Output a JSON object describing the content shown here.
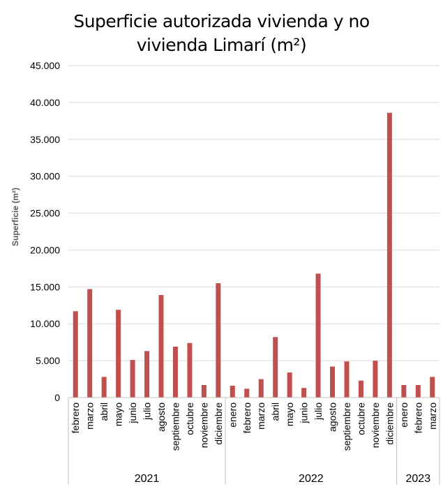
{
  "chart_data": {
    "type": "bar",
    "title_line1": "Superficie autorizada vivienda y no",
    "title_line2": "vivienda Limarí (m²)",
    "ylabel": "Superficie  (m²)",
    "xlabel": "",
    "ylim": [
      0,
      45000
    ],
    "yticks": [
      0,
      5000,
      10000,
      15000,
      20000,
      25000,
      30000,
      35000,
      40000,
      45000
    ],
    "ytick_labels": [
      "0",
      "5.000",
      "10.000",
      "15.000",
      "20.000",
      "25.000",
      "30.000",
      "35.000",
      "40.000",
      "45.000"
    ],
    "grid": true,
    "legend": "none",
    "bar_color": "#C0504D",
    "groups": [
      {
        "year": "2021",
        "categories": [
          "febrero",
          "marzo",
          "abril",
          "mayo",
          "junio",
          "julio",
          "agosto",
          "septiembre",
          "octubre",
          "noviembre",
          "diciembre"
        ],
        "values": [
          11700,
          14700,
          2800,
          11900,
          5100,
          6300,
          13900,
          6900,
          7400,
          1700,
          15500
        ]
      },
      {
        "year": "2022",
        "categories": [
          "enero",
          "febrero",
          "marzo",
          "abril",
          "mayo",
          "junio",
          "julio",
          "agosto",
          "septiembre",
          "octubre",
          "noviembre",
          "diciembre"
        ],
        "values": [
          1600,
          1200,
          2500,
          8200,
          3400,
          1300,
          16800,
          4200,
          4900,
          2300,
          5000,
          38600
        ]
      },
      {
        "year": "2023",
        "categories": [
          "enero",
          "febrero",
          "marzo"
        ],
        "values": [
          1700,
          1700,
          2800
        ]
      }
    ]
  }
}
